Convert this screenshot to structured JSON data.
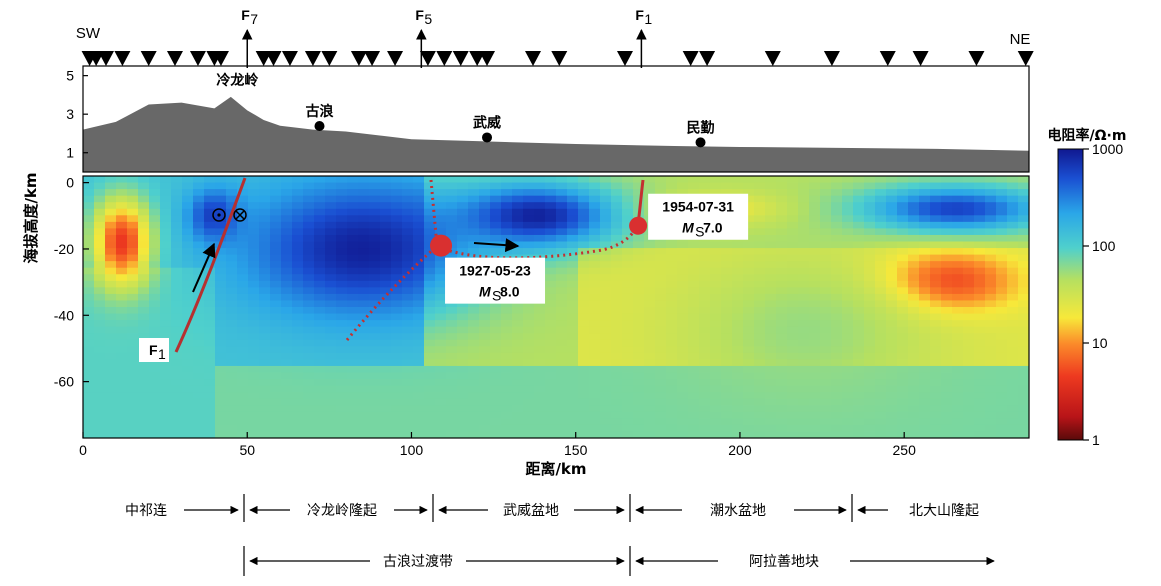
{
  "chart_data": {
    "type": "heatmap",
    "title": "",
    "xlabel": "距离/km",
    "ylabel": "海拔高度/km",
    "xlim": [
      0,
      288
    ],
    "ylim": [
      -77,
      2
    ],
    "x_ticks": [
      "0",
      "50",
      "100",
      "150",
      "200",
      "250"
    ],
    "y_ticks": [
      "0",
      "-20",
      "-40",
      "-60"
    ],
    "colorbar": {
      "title": "电阻率/Ω·m",
      "scale": "log",
      "ticks": [
        "1000",
        "100",
        "10",
        "1"
      ],
      "range": [
        1,
        1000
      ]
    },
    "topography": {
      "y_ticks": [
        "5",
        "3",
        "1"
      ],
      "profile_x": [
        0,
        10,
        20,
        30,
        40,
        45,
        50,
        55,
        60,
        70,
        80,
        90,
        100,
        120,
        150,
        180,
        200,
        230,
        260,
        288
      ],
      "profile_y": [
        2.2,
        2.6,
        3.5,
        3.6,
        3.3,
        3.9,
        3.2,
        2.7,
        2.4,
        2.2,
        2.1,
        1.9,
        1.7,
        1.6,
        1.45,
        1.35,
        1.3,
        1.25,
        1.2,
        1.1
      ],
      "towns": [
        {
          "name": "冷龙岭",
          "x": 47
        },
        {
          "name": "古浪",
          "x": 72
        },
        {
          "name": "武威",
          "x": 123
        },
        {
          "name": "民勤",
          "x": 188
        }
      ]
    },
    "end_labels": [
      "SW",
      "NE"
    ],
    "faults": [
      {
        "name": "F",
        "sub": "7",
        "x": 50
      },
      {
        "name": "F",
        "sub": "5",
        "x": 103
      },
      {
        "name": "F",
        "sub": "1",
        "x": 170
      }
    ],
    "f1_label": {
      "name": "F",
      "sub": "1"
    },
    "stations_x": [
      2,
      4,
      7,
      12,
      20,
      28,
      35,
      40,
      42,
      55,
      58,
      63,
      70,
      75,
      84,
      88,
      95,
      105,
      110,
      115,
      120,
      123,
      137,
      145,
      165,
      185,
      190,
      210,
      228,
      245,
      255,
      272,
      287
    ],
    "earthquakes": [
      {
        "date": "1927-05-23",
        "mag_prefix": "M",
        "mag_sub": "S",
        "mag": "8.0",
        "x": 109,
        "depth": -19
      },
      {
        "date": "1954-07-31",
        "mag_prefix": "M",
        "mag_sub": "S",
        "mag": "7.0",
        "x": 169,
        "depth": -13
      }
    ],
    "anomalies": [
      {
        "x": 12,
        "depth": -18,
        "log_rho": 0.6,
        "sx": 9,
        "sy": 13
      },
      {
        "x": 262,
        "depth": -30,
        "log_rho": 0.5,
        "sx": 20,
        "sy": 9
      },
      {
        "x": 85,
        "depth": -20,
        "log_rho": 2.95,
        "sx": 35,
        "sy": 20
      },
      {
        "x": 138,
        "depth": -10,
        "log_rho": 2.95,
        "sx": 25,
        "sy": 10
      },
      {
        "x": 40,
        "depth": -10,
        "log_rho": 2.8,
        "sx": 8,
        "sy": 8
      },
      {
        "x": 265,
        "depth": -8,
        "log_rho": 2.8,
        "sx": 28,
        "sy": 7
      },
      {
        "x": 195,
        "depth": -8,
        "log_rho": 1.3,
        "sx": 18,
        "sy": 5
      },
      {
        "x": 220,
        "depth": -45,
        "log_rho": 1.75,
        "sx": 40,
        "sy": 25
      }
    ],
    "tectonic_units": [
      "中祁连",
      "冷龙岭隆起",
      "武威盆地",
      "潮水盆地",
      "北大山隆起"
    ],
    "tectonic_zones": [
      "古浪过渡带",
      "阿拉善地块"
    ]
  }
}
